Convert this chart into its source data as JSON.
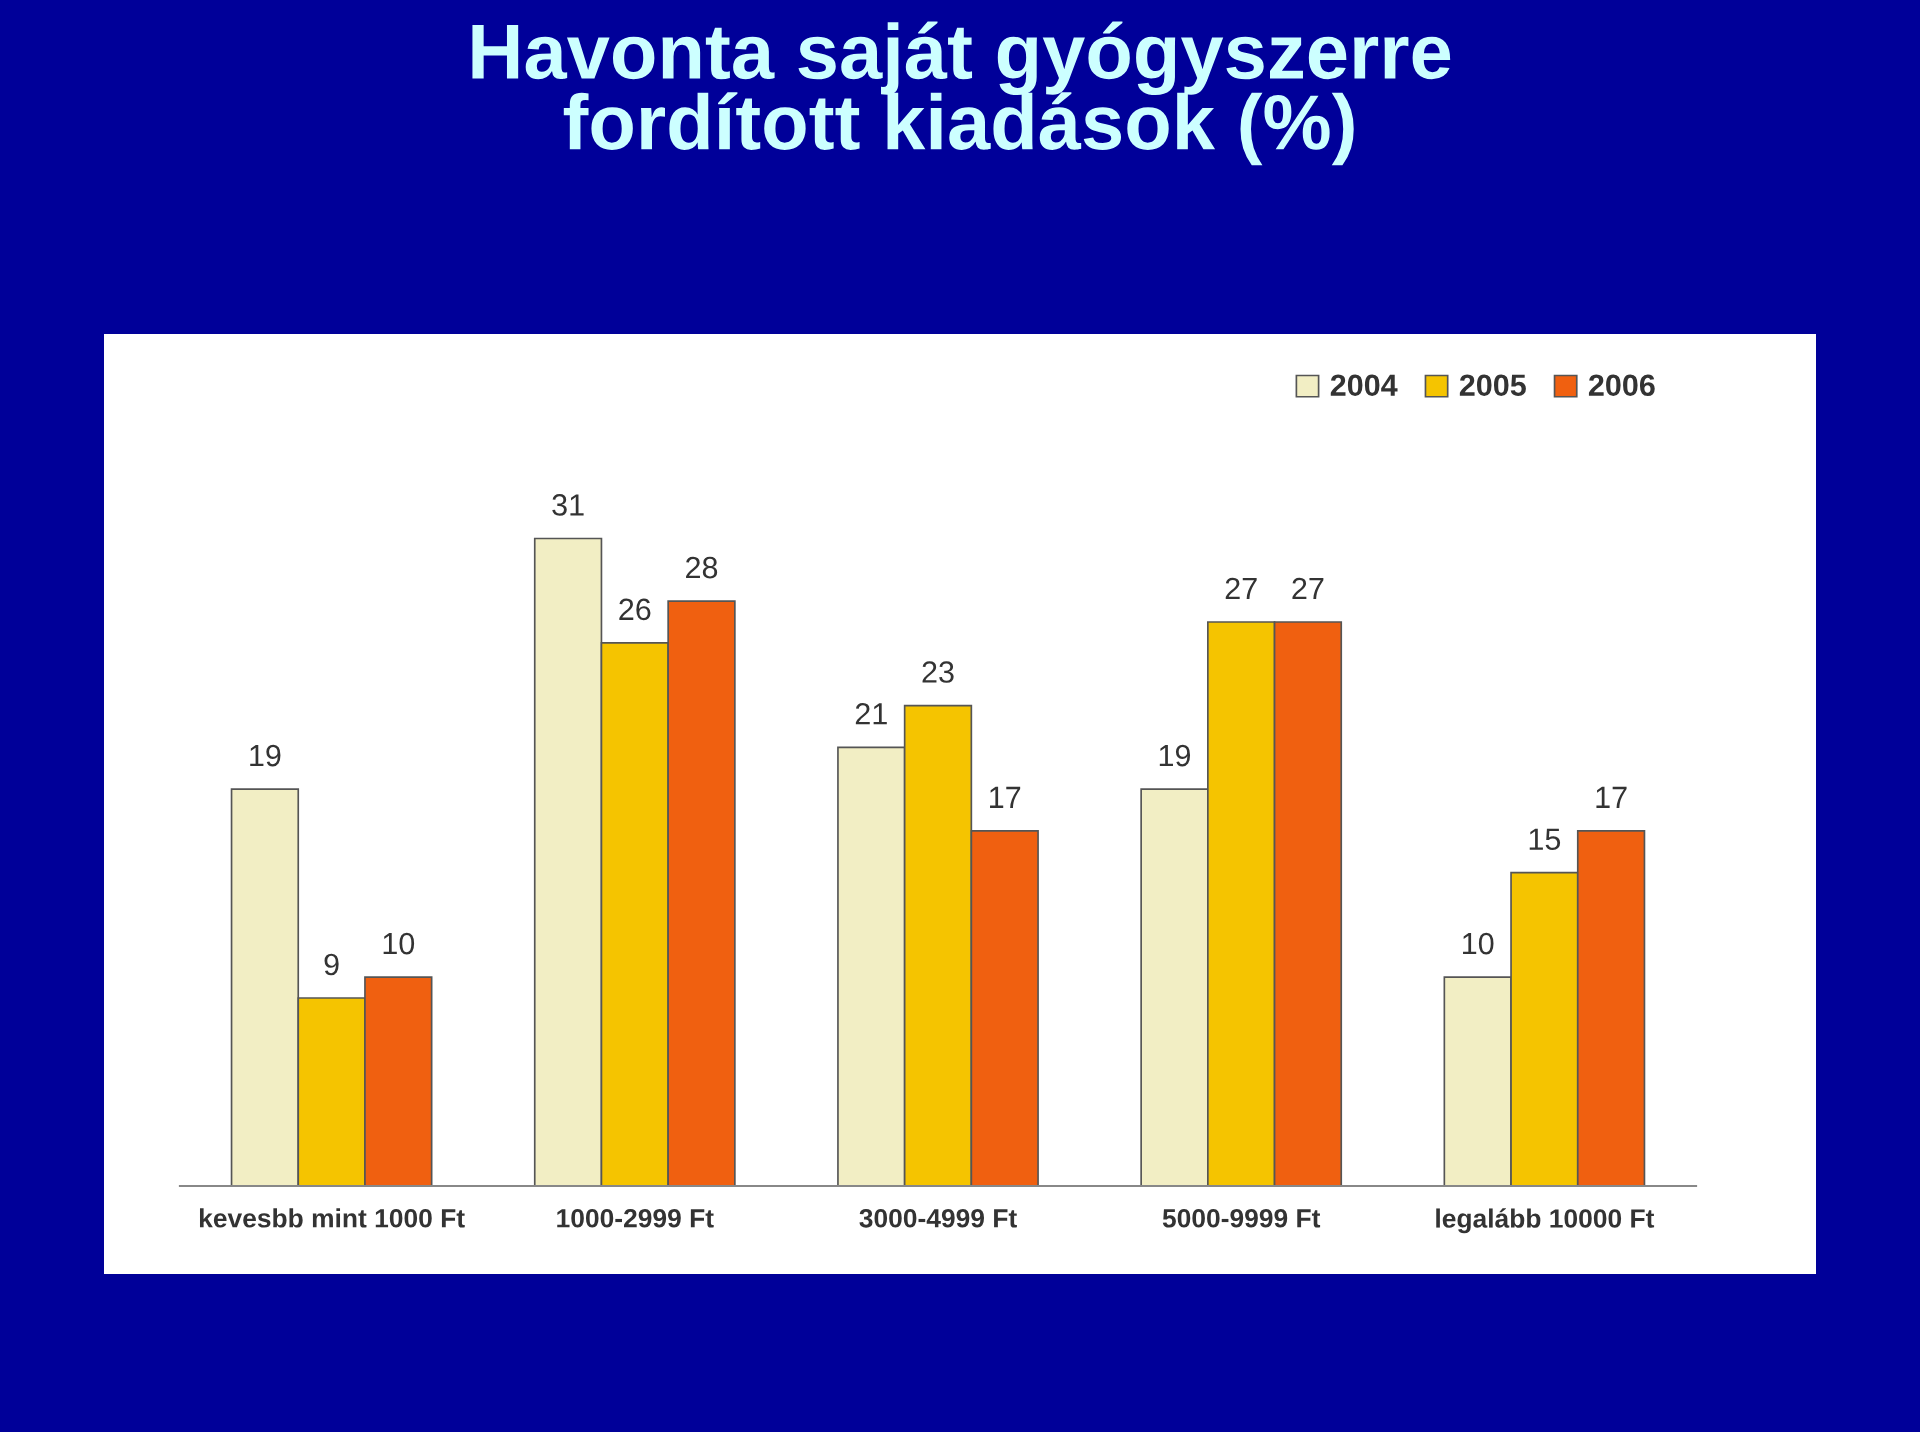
{
  "chart_data": {
    "type": "bar",
    "title": "Havonta saját gyógyszerre\nfordított kiadások (%)",
    "categories": [
      "kevesbb mint 1000 Ft",
      "1000-2999 Ft",
      "3000-4999 Ft",
      "5000-9999 Ft",
      "legalább 10000 Ft"
    ],
    "series": [
      {
        "name": "2004",
        "color": "#f2eec4",
        "values": [
          19,
          31,
          21,
          19,
          10
        ]
      },
      {
        "name": "2005",
        "color": "#f5c400",
        "values": [
          9,
          26,
          23,
          27,
          15
        ]
      },
      {
        "name": "2006",
        "color": "#f06010",
        "values": [
          10,
          28,
          17,
          27,
          17
        ]
      }
    ],
    "data_labels": true,
    "legend": "top right",
    "grid": false
  }
}
